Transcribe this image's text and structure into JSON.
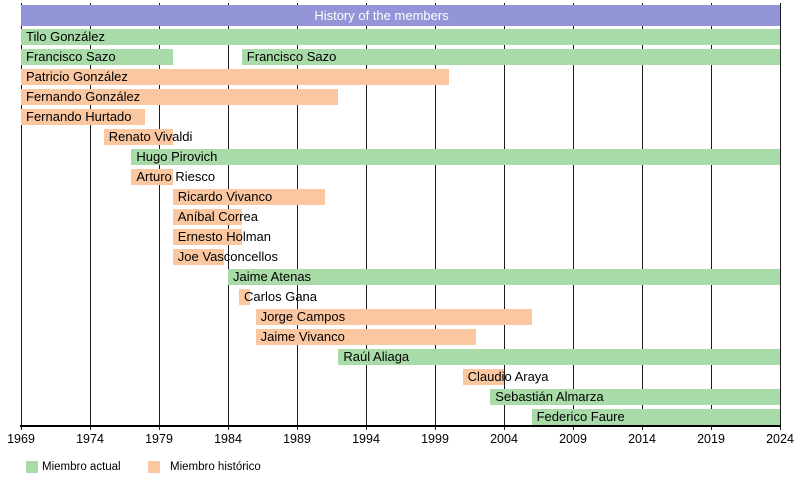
{
  "title": "History of the members",
  "colors": {
    "actual": "#a9dba9",
    "historico": "#fac7a1",
    "title_bg": "#9494d8",
    "title_text": "#ffffff",
    "grid": "#1a1a1a",
    "axis": "#000000",
    "background": "#ffffff"
  },
  "chart_data": {
    "type": "bar",
    "subtype": "horizontal-gantt-timeline",
    "title": "History of the members",
    "xlim": [
      1969,
      2024
    ],
    "x_ticks": [
      1969,
      1974,
      1979,
      1984,
      1989,
      1994,
      1999,
      2004,
      2009,
      2014,
      2019,
      2024
    ],
    "grid": "on",
    "legend_position": "bottom-left",
    "legend": [
      {
        "key": "actual",
        "label": "Miembro actual",
        "color": "#a9dba9"
      },
      {
        "key": "historico",
        "label": "Miembro histórico",
        "color": "#fac7a1"
      }
    ],
    "rows": [
      {
        "label": "Tilo González",
        "segments": [
          {
            "status": "actual",
            "start": 1969,
            "end": 2024
          }
        ]
      },
      {
        "label": "Francisco Sazo",
        "segments": [
          {
            "status": "actual",
            "start": 1969,
            "end": 1980
          },
          {
            "status": "actual",
            "start": 1985,
            "end": 2024
          }
        ]
      },
      {
        "label": "Patricio González",
        "segments": [
          {
            "status": "historico",
            "start": 1969,
            "end": 2000
          }
        ]
      },
      {
        "label": "Fernando González",
        "segments": [
          {
            "status": "historico",
            "start": 1969,
            "end": 1992
          }
        ]
      },
      {
        "label": "Fernando Hurtado",
        "segments": [
          {
            "status": "historico",
            "start": 1969,
            "end": 1978
          }
        ]
      },
      {
        "label": "Renato Vivaldi",
        "segments": [
          {
            "status": "historico",
            "start": 1975,
            "end": 1980
          }
        ]
      },
      {
        "label": "Hugo Pirovich",
        "segments": [
          {
            "status": "actual",
            "start": 1977,
            "end": 2024
          }
        ]
      },
      {
        "label": "Arturo Riesco",
        "segments": [
          {
            "status": "historico",
            "start": 1977,
            "end": 1980
          }
        ]
      },
      {
        "label": "Ricardo Vivanco",
        "segments": [
          {
            "status": "historico",
            "start": 1980,
            "end": 1991
          }
        ]
      },
      {
        "label": "Aníbal Correa",
        "segments": [
          {
            "status": "historico",
            "start": 1980,
            "end": 1985
          }
        ]
      },
      {
        "label": "Ernesto Holman",
        "segments": [
          {
            "status": "historico",
            "start": 1980,
            "end": 1985
          }
        ]
      },
      {
        "label": "Joe Vasconcellos",
        "segments": [
          {
            "status": "historico",
            "start": 1980,
            "end": 1983.7
          }
        ]
      },
      {
        "label": "Jaime Atenas",
        "segments": [
          {
            "status": "actual",
            "start": 1984,
            "end": 2024
          }
        ]
      },
      {
        "label": "Carlos Gana",
        "segments": [
          {
            "status": "historico",
            "start": 1984.8,
            "end": 1985.6
          }
        ]
      },
      {
        "label": "Jorge Campos",
        "segments": [
          {
            "status": "historico",
            "start": 1986,
            "end": 2006
          }
        ]
      },
      {
        "label": "Jaime Vivanco",
        "segments": [
          {
            "status": "historico",
            "start": 1986,
            "end": 2002
          }
        ]
      },
      {
        "label": "Raúl Aliaga",
        "segments": [
          {
            "status": "actual",
            "start": 1992,
            "end": 2024
          }
        ]
      },
      {
        "label": "Claudio Araya",
        "segments": [
          {
            "status": "historico",
            "start": 2001,
            "end": 2004
          }
        ]
      },
      {
        "label": "Sebastián Almarza",
        "segments": [
          {
            "status": "actual",
            "start": 2003,
            "end": 2024
          }
        ]
      },
      {
        "label": "Federico Faure",
        "segments": [
          {
            "status": "actual",
            "start": 2006,
            "end": 2024
          }
        ]
      }
    ]
  }
}
